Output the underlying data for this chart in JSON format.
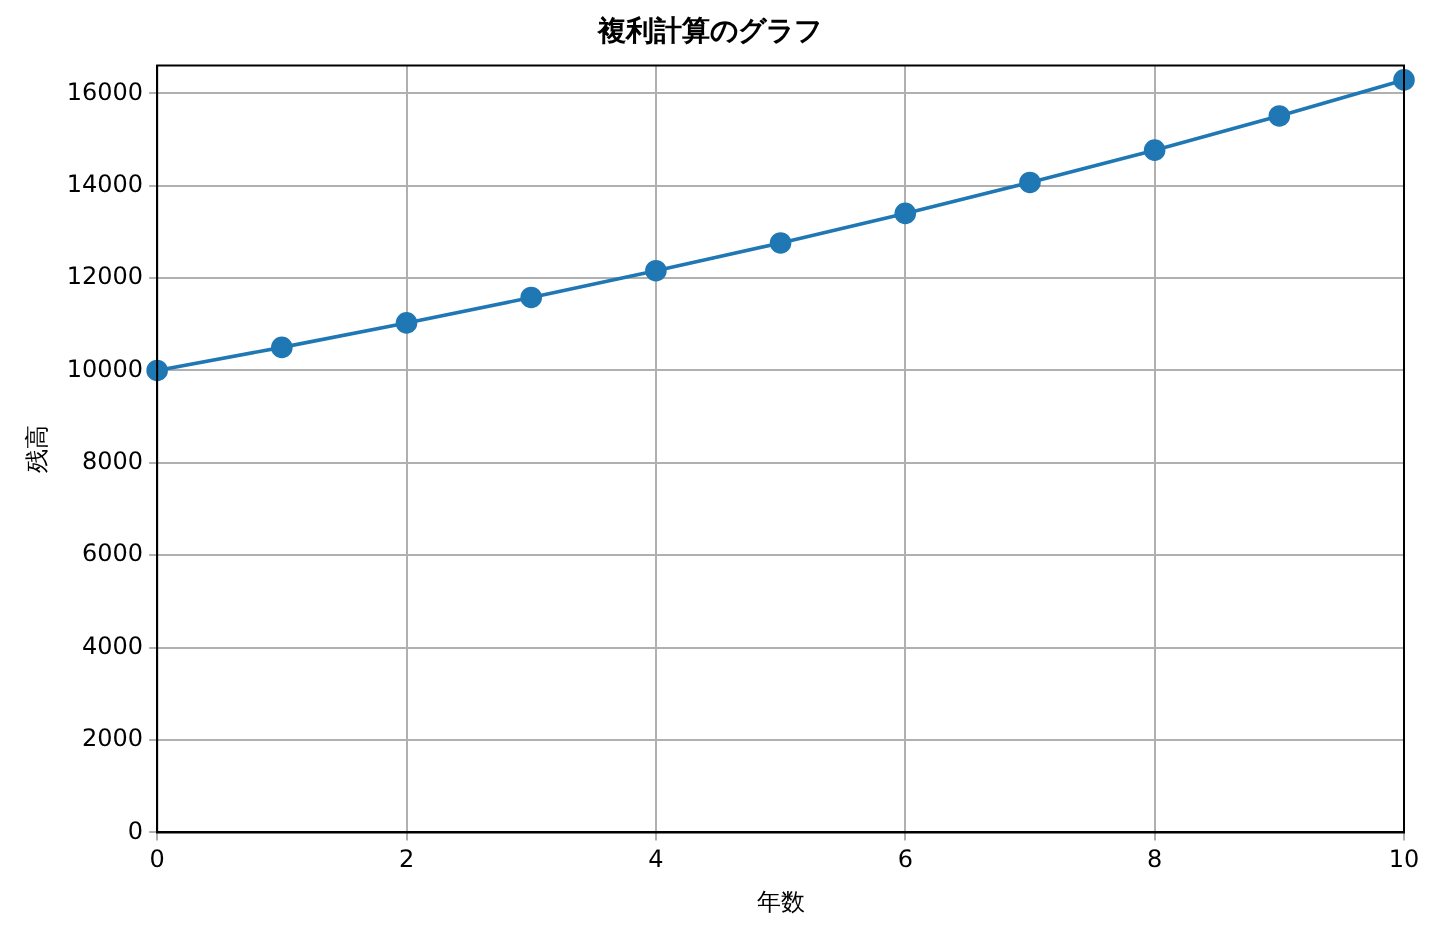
{
  "chart_data": {
    "type": "line",
    "title": "複利計算のグラフ",
    "xlabel": "年数",
    "ylabel": "残高",
    "x": [
      0,
      1,
      2,
      3,
      4,
      5,
      6,
      7,
      8,
      9,
      10
    ],
    "series": [
      {
        "color": "#1f77b4",
        "values": [
          10000,
          10500,
          11030,
          11580,
          12160,
          12760,
          13400,
          14070,
          14770,
          15510,
          16290
        ]
      }
    ],
    "xlim": [
      0,
      10
    ],
    "xticks": [
      0,
      2,
      4,
      6,
      8,
      10
    ],
    "ylim": [
      0,
      16600
    ],
    "yticks": [
      0,
      2000,
      4000,
      6000,
      8000,
      10000,
      12000,
      14000,
      16000
    ],
    "grid": true,
    "legend": false,
    "marker": "circle",
    "line_style": "solid"
  }
}
